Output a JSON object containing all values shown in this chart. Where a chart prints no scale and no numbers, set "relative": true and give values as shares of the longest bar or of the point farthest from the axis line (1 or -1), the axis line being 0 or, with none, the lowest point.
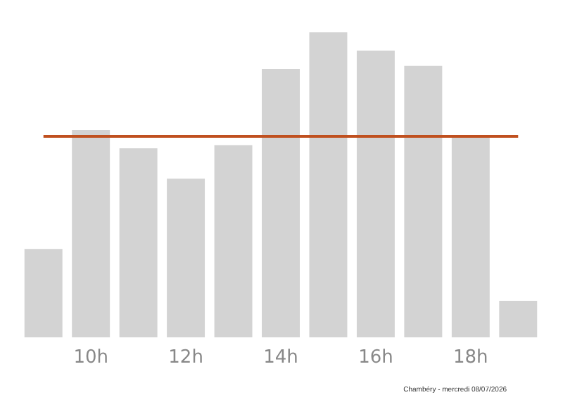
{
  "chart_data": {
    "type": "bar",
    "relative": true,
    "categories": [
      null,
      "10h",
      null,
      "12h",
      null,
      "14h",
      null,
      "16h",
      null,
      "18h",
      null
    ],
    "values": [
      0.29,
      0.68,
      0.62,
      0.52,
      0.63,
      0.88,
      1,
      0.94,
      0.89,
      0.66,
      0.12
    ],
    "color": "#d3d3d3",
    "ref_lines": [
      {
        "axis": "y",
        "value": 0.66,
        "color": "#c0501f",
        "line_style": "solid"
      }
    ],
    "annotations": [
      "Chambéry - mercredi 08/07/2026"
    ]
  }
}
